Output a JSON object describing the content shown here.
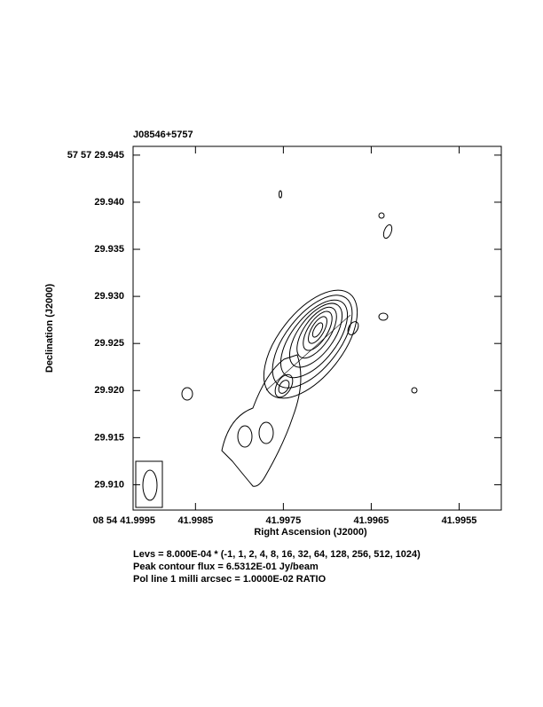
{
  "chart_data": {
    "type": "contour",
    "title": "J08546+5757",
    "x_label": "Right Ascension (J2000)",
    "y_label": "Declination (J2000)",
    "xlim": [
      41.99921,
      41.99502
    ],
    "ylim": [
      29.90731,
      29.94593
    ],
    "xticks": [
      {
        "value": 41.9995,
        "label": "08 54 41.9995"
      },
      41.9985,
      41.9975,
      41.9965,
      41.9955
    ],
    "yticks": [
      {
        "value": 29.945,
        "label": "57 57 29.945"
      },
      {
        "value": 29.94,
        "label": "29.940"
      },
      29.935,
      {
        "value": 29.93,
        "label": "29.930"
      },
      29.925,
      {
        "value": 29.92,
        "label": "29.920"
      },
      29.915,
      {
        "value": 29.91,
        "label": "29.910"
      }
    ],
    "notes": [
      "Levs = 8.000E-04 * (-1, 1, 2, 4, 8, 16, 32, 64, 128, 256, 512, 1024)",
      "Peak contour flux =  6.5312E-01 Jy/beam",
      "Pol line 1 milli arcsec =  1.0000E-02 RATIO"
    ]
  }
}
